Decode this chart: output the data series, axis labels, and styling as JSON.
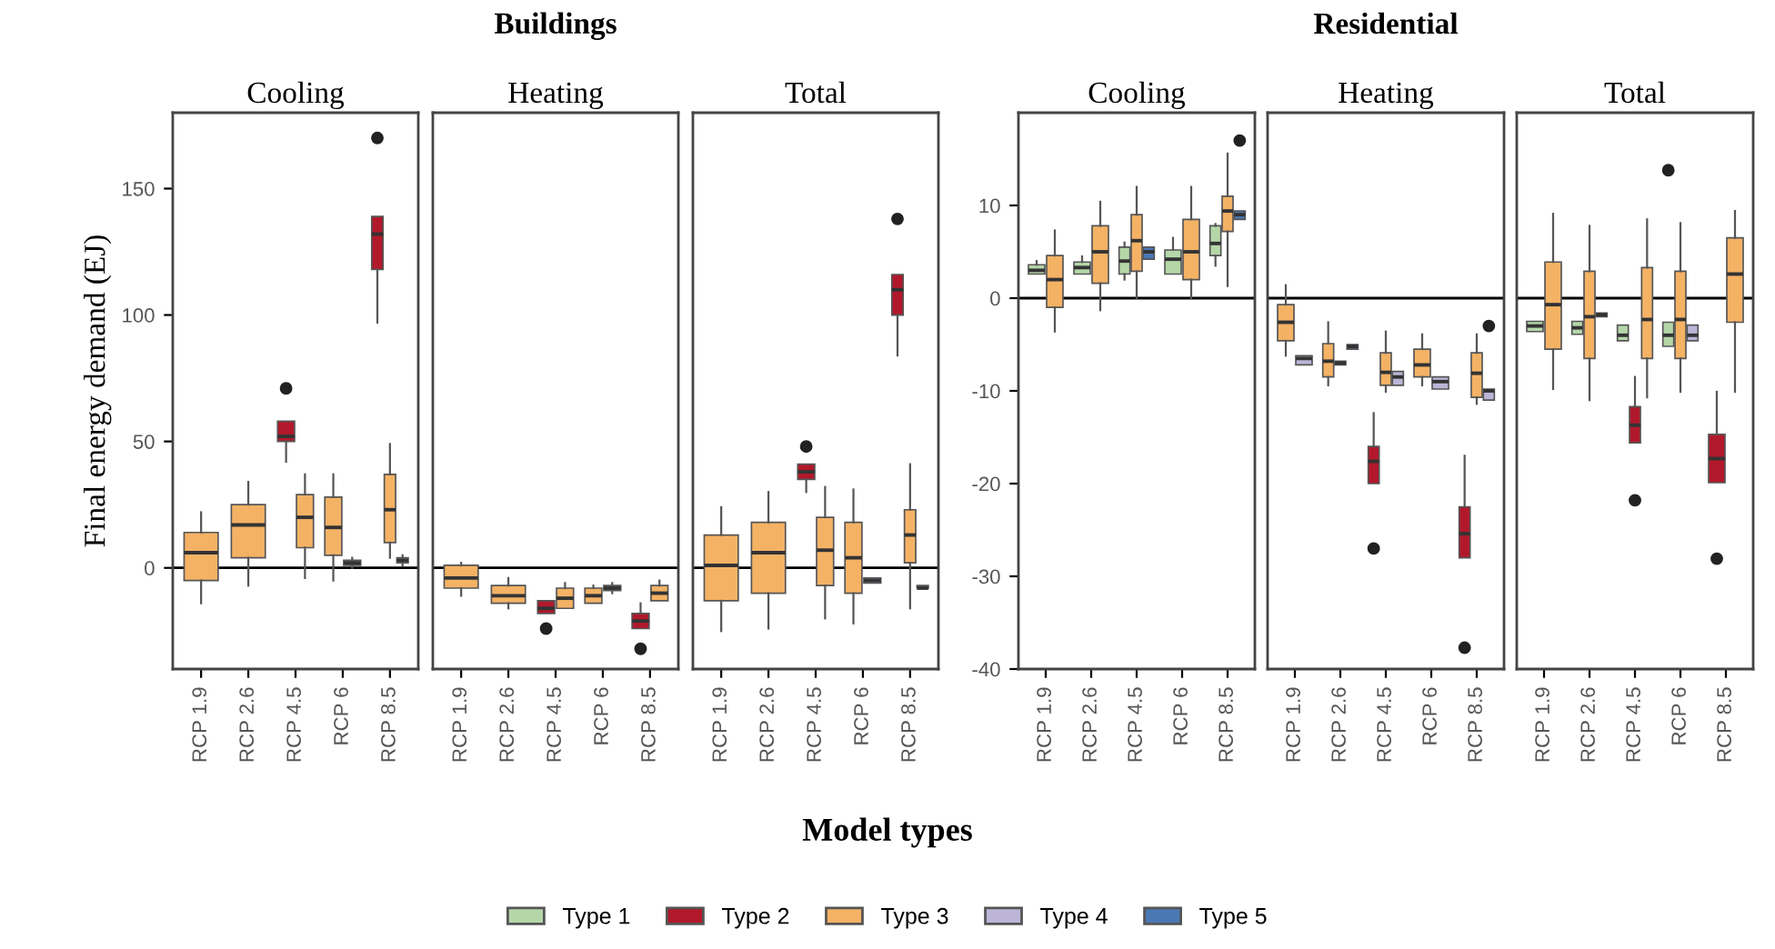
{
  "chart_data": [
    {
      "type": "box",
      "title": "Cooling",
      "ylabel": "Final energy demand (EJ)",
      "categories": [
        "RCP 1.9",
        "RCP 2.6",
        "RCP 4.5",
        "RCP 6",
        "RCP 8.5"
      ],
      "ylim": [
        -40,
        180
      ],
      "yticks": [
        0,
        50,
        100,
        150
      ],
      "legend": "bottom",
      "grid": false,
      "ref_lines": [
        {
          "axis": "y",
          "value": 0,
          "color": "#000000"
        }
      ],
      "series": [
        {
          "name": "Type 2",
          "color": "#b2182b",
          "boxes": [
            null,
            null,
            {
              "low": 42,
              "q1": 50,
              "median": 52,
              "q3": 58,
              "high": 58,
              "outliers": [
                71
              ]
            },
            null,
            {
              "low": 97,
              "q1": 118,
              "median": 132,
              "q3": 139,
              "high": 139,
              "outliers": [
                170
              ]
            }
          ]
        },
        {
          "name": "Type 3",
          "color": "#f4b265",
          "boxes": [
            {
              "low": -14,
              "q1": -5,
              "median": 6,
              "q3": 14,
              "high": 22
            },
            {
              "low": -7,
              "q1": 4,
              "median": 17,
              "q3": 25,
              "high": 34
            },
            {
              "low": -4,
              "q1": 8,
              "median": 20,
              "q3": 29,
              "high": 37
            },
            {
              "low": -5,
              "q1": 5,
              "median": 16,
              "q3": 28,
              "high": 37
            },
            {
              "low": 4,
              "q1": 10,
              "median": 23,
              "q3": 37,
              "high": 49
            }
          ]
        },
        {
          "name": "Type 4",
          "color": "#bcb5d8",
          "boxes": [
            null,
            null,
            null,
            {
              "low": 0,
              "q1": 1,
              "median": 2,
              "q3": 3,
              "high": 4
            },
            {
              "low": 1,
              "q1": 2,
              "median": 3,
              "q3": 4,
              "high": 5
            }
          ]
        }
      ]
    },
    {
      "type": "box",
      "subtitle": "Buildings",
      "title": "Heating",
      "categories": [
        "RCP 1.9",
        "RCP 2.6",
        "RCP 4.5",
        "RCP 6",
        "RCP 8.5"
      ],
      "ylim": [
        -40,
        180
      ],
      "tick_labels": "x",
      "legend": "bottom",
      "grid": false,
      "ref_lines": [
        {
          "axis": "y",
          "value": 0,
          "color": "#000000"
        }
      ],
      "series": [
        {
          "name": "Type 2",
          "color": "#b2182b",
          "boxes": [
            null,
            null,
            {
              "low": -18,
              "q1": -18,
              "median": -16,
              "q3": -13,
              "high": -13,
              "outliers": [
                -24
              ]
            },
            null,
            {
              "low": -24,
              "q1": -24,
              "median": -21,
              "q3": -18,
              "high": -14,
              "outliers": [
                -32
              ]
            }
          ]
        },
        {
          "name": "Type 3",
          "color": "#f4b265",
          "boxes": [
            {
              "low": -11,
              "q1": -8,
              "median": -4,
              "q3": 1,
              "high": 2
            },
            {
              "low": -16,
              "q1": -14,
              "median": -11,
              "q3": -7,
              "high": -4
            },
            {
              "low": -16,
              "q1": -16,
              "median": -12,
              "q3": -8,
              "high": -6
            },
            {
              "low": -14,
              "q1": -14,
              "median": -11,
              "q3": -8,
              "high": -7
            },
            {
              "low": -13,
              "q1": -13,
              "median": -10,
              "q3": -7,
              "high": -5
            }
          ]
        },
        {
          "name": "Type 4",
          "color": "#bcb5d8",
          "boxes": [
            null,
            null,
            null,
            {
              "low": -10,
              "q1": -9,
              "median": -8,
              "q3": -7,
              "high": -6
            },
            null
          ]
        }
      ]
    },
    {
      "type": "box",
      "title": "Total",
      "xlabel": "Model types",
      "categories": [
        "RCP 1.9",
        "RCP 2.6",
        "RCP 4.5",
        "RCP 6",
        "RCP 8.5"
      ],
      "ylim": [
        -40,
        180
      ],
      "tick_labels": "x",
      "legend": "bottom",
      "grid": false,
      "ref_lines": [
        {
          "axis": "y",
          "value": 0,
          "color": "#000000"
        }
      ],
      "series": [
        {
          "name": "Type 2",
          "color": "#b2182b",
          "boxes": [
            null,
            null,
            {
              "low": 30,
              "q1": 35,
              "median": 38,
              "q3": 41,
              "high": 41,
              "outliers": [
                48
              ]
            },
            null,
            {
              "low": 84,
              "q1": 100,
              "median": 110,
              "q3": 116,
              "high": 116,
              "outliers": [
                138
              ]
            }
          ]
        },
        {
          "name": "Type 3",
          "color": "#f4b265",
          "boxes": [
            {
              "low": -25,
              "q1": -13,
              "median": 1,
              "q3": 13,
              "high": 24
            },
            {
              "low": -24,
              "q1": -10,
              "median": 6,
              "q3": 18,
              "high": 30
            },
            {
              "low": -20,
              "q1": -7,
              "median": 7,
              "q3": 20,
              "high": 32
            },
            {
              "low": -22,
              "q1": -10,
              "median": 4,
              "q3": 18,
              "high": 31
            },
            {
              "low": -16,
              "q1": 2,
              "median": 13,
              "q3": 23,
              "high": 41
            }
          ]
        },
        {
          "name": "Type 4",
          "color": "#bcb5d8",
          "boxes": [
            null,
            null,
            null,
            {
              "low": -6,
              "q1": -6,
              "median": -5,
              "q3": -4,
              "high": -4
            },
            {
              "low": -8,
              "q1": -8,
              "median": -8,
              "q3": -7,
              "high": -7
            }
          ]
        }
      ]
    },
    {
      "type": "box",
      "title": "Cooling",
      "categories": [
        "RCP 1.9",
        "RCP 2.6",
        "RCP 4.5",
        "RCP 6",
        "RCP 8.5"
      ],
      "ylim": [
        -40,
        20
      ],
      "yticks": [
        -40,
        -30,
        -20,
        -10,
        0,
        10
      ],
      "legend": "bottom",
      "grid": false,
      "ref_lines": [
        {
          "axis": "y",
          "value": 0,
          "color": "#000000"
        }
      ],
      "series": [
        {
          "name": "Type 1",
          "color": "#b5d7a8",
          "boxes": [
            {
              "low": 2.6,
              "q1": 2.6,
              "median": 3,
              "q3": 3.6,
              "high": 4
            },
            {
              "low": 2.6,
              "q1": 2.6,
              "median": 3.3,
              "q3": 3.9,
              "high": 4.5
            },
            {
              "low": 2,
              "q1": 2.6,
              "median": 4,
              "q3": 5.5,
              "high": 6
            },
            {
              "low": 2.6,
              "q1": 2.6,
              "median": 4.2,
              "q3": 5.2,
              "high": 6.5
            },
            {
              "low": 3.5,
              "q1": 4.6,
              "median": 5.9,
              "q3": 7.8,
              "high": 8
            }
          ]
        },
        {
          "name": "Type 3",
          "color": "#f4b265",
          "boxes": [
            {
              "low": -3.6,
              "q1": -1,
              "median": 2,
              "q3": 4.6,
              "high": 7.3
            },
            {
              "low": -1.3,
              "q1": 1.6,
              "median": 5,
              "q3": 7.8,
              "high": 10.4
            },
            {
              "low": 0,
              "q1": 2.9,
              "median": 6.2,
              "q3": 9,
              "high": 12
            },
            {
              "low": 0,
              "q1": 2,
              "median": 5,
              "q3": 8.5,
              "high": 12
            },
            {
              "low": 1.3,
              "q1": 7.2,
              "median": 9.4,
              "q3": 11,
              "high": 15.6
            }
          ]
        },
        {
          "name": "Type 5",
          "color": "#4a78b5",
          "boxes": [
            null,
            null,
            {
              "low": 4.2,
              "q1": 4.2,
              "median": 5,
              "q3": 5.5,
              "high": 5.5
            },
            null,
            {
              "low": 8.5,
              "q1": 8.5,
              "median": 9,
              "q3": 9.4,
              "high": 9.4,
              "outliers": [
                17
              ]
            }
          ]
        }
      ]
    },
    {
      "type": "box",
      "subtitle": "Residential",
      "title": "Heating",
      "categories": [
        "RCP 1.9",
        "RCP 2.6",
        "RCP 4.5",
        "RCP 6",
        "RCP 8.5"
      ],
      "ylim": [
        -40,
        20
      ],
      "tick_labels": "x",
      "legend": "bottom",
      "grid": false,
      "ref_lines": [
        {
          "axis": "y",
          "value": 0,
          "color": "#000000"
        }
      ],
      "series": [
        {
          "name": "Type 2",
          "color": "#b2182b",
          "boxes": [
            null,
            null,
            {
              "low": -20,
              "q1": -20,
              "median": -17.6,
              "q3": -16,
              "high": -12.4,
              "outliers": [
                -27
              ]
            },
            null,
            {
              "low": -28,
              "q1": -28,
              "median": -25.4,
              "q3": -22.5,
              "high": -17,
              "outliers": [
                -37.7
              ]
            }
          ]
        },
        {
          "name": "Type 3",
          "color": "#f4b265",
          "boxes": [
            {
              "low": -6.2,
              "q1": -4.6,
              "median": -2.6,
              "q3": -0.7,
              "high": 1.4
            },
            {
              "low": -9.4,
              "q1": -8.5,
              "median": -6.8,
              "q3": -4.9,
              "high": -2.6
            },
            {
              "low": -10.1,
              "q1": -9.4,
              "median": -8,
              "q3": -5.9,
              "high": -3.6
            },
            {
              "low": -9.4,
              "q1": -8.5,
              "median": -7.2,
              "q3": -5.5,
              "high": -3.9
            },
            {
              "low": -11.4,
              "q1": -10.7,
              "median": -8.1,
              "q3": -5.9,
              "high": -3.9
            }
          ]
        },
        {
          "name": "Type 4",
          "color": "#bcb5d8",
          "boxes": [
            {
              "low": -7.2,
              "q1": -7.2,
              "median": -6.5,
              "q3": -6.2,
              "high": -6.2
            },
            {
              "low": -7.2,
              "q1": -7.2,
              "median": -7,
              "q3": -6.8,
              "high": -6.8
            },
            {
              "low": -9.4,
              "q1": -9.4,
              "median": -8.5,
              "q3": -7.9,
              "high": -7.9
            },
            {
              "low": -9.8,
              "q1": -9.8,
              "median": -9,
              "q3": -8.5,
              "high": -8.5
            },
            {
              "low": -11,
              "q1": -11,
              "median": -10,
              "q3": -9.8,
              "high": -9.8,
              "outliers": [
                -3
              ]
            }
          ]
        },
        {
          "name": "Type 5",
          "color": "#4a78b5",
          "boxes": [
            null,
            {
              "low": -5.5,
              "q1": -5.5,
              "median": -5.2,
              "q3": -5,
              "high": -5
            },
            null,
            null,
            null
          ]
        }
      ]
    },
    {
      "type": "box",
      "title": "Total",
      "categories": [
        "RCP 1.9",
        "RCP 2.6",
        "RCP 4.5",
        "RCP 6",
        "RCP 8.5"
      ],
      "ylim": [
        -40,
        20
      ],
      "tick_labels": "x",
      "legend": "bottom",
      "grid": false,
      "ref_lines": [
        {
          "axis": "y",
          "value": 0,
          "color": "#000000"
        }
      ],
      "series": [
        {
          "name": "Type 1",
          "color": "#b5d7a8",
          "boxes": [
            {
              "low": -3.6,
              "q1": -3.6,
              "median": -3,
              "q3": -2.5,
              "high": -2.5
            },
            {
              "low": -3.9,
              "q1": -3.9,
              "median": -3.2,
              "q3": -2.5,
              "high": -2.5
            },
            {
              "low": -4.6,
              "q1": -4.6,
              "median": -4,
              "q3": -2.9,
              "high": -2.9
            },
            {
              "low": -5.2,
              "q1": -5.2,
              "median": -4,
              "q3": -2.6,
              "high": -2.6,
              "outliers": [
                13.8
              ]
            },
            null
          ]
        },
        {
          "name": "Type 2",
          "color": "#b2182b",
          "boxes": [
            null,
            null,
            {
              "low": -15.6,
              "q1": -15.6,
              "median": -13.7,
              "q3": -11.7,
              "high": -8.5,
              "outliers": [
                -21.8
              ]
            },
            null,
            {
              "low": -19.9,
              "q1": -19.9,
              "median": -17.3,
              "q3": -14.7,
              "high": -10.1,
              "outliers": [
                -28.1
              ]
            }
          ]
        },
        {
          "name": "Type 3",
          "color": "#f4b265",
          "boxes": [
            {
              "low": -9.8,
              "q1": -5.5,
              "median": -0.7,
              "q3": 3.9,
              "high": 9.1
            },
            {
              "low": -11,
              "q1": -6.5,
              "median": -2,
              "q3": 2.9,
              "high": 7.8
            },
            {
              "low": -10.7,
              "q1": -6.5,
              "median": -2.3,
              "q3": 3.3,
              "high": 8.5
            },
            {
              "low": -10.1,
              "q1": -6.5,
              "median": -2.3,
              "q3": 2.9,
              "high": 8.1
            },
            {
              "low": -10.1,
              "q1": -2.6,
              "median": 2.6,
              "q3": 6.5,
              "high": 9.4
            }
          ]
        },
        {
          "name": "Type 4",
          "color": "#bcb5d8",
          "boxes": [
            null,
            null,
            null,
            {
              "low": -4.6,
              "q1": -4.6,
              "median": -4,
              "q3": -2.9,
              "high": -2.9
            },
            null
          ]
        },
        {
          "name": "Type 5",
          "color": "#4a78b5",
          "boxes": [
            null,
            {
              "low": -2,
              "q1": -2,
              "median": -1.8,
              "q3": -1.6,
              "high": -1.6
            },
            null,
            null,
            null
          ]
        }
      ]
    }
  ]
}
